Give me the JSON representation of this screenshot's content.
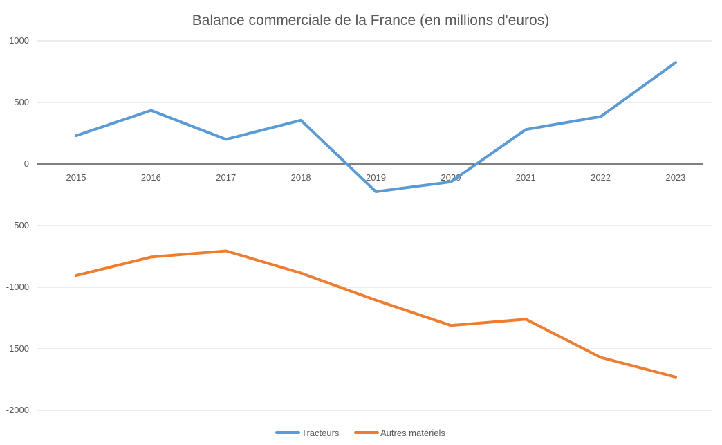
{
  "chart_data": {
    "type": "line",
    "title": "Balance commerciale de la France (en millions d'euros)",
    "xlabel": "",
    "ylabel": "",
    "categories": [
      "2015",
      "2016",
      "2017",
      "2018",
      "2019",
      "2020",
      "2021",
      "2022",
      "2023"
    ],
    "ylim": [
      -2000,
      1000
    ],
    "yticks": [
      1000,
      500,
      0,
      -500,
      -1000,
      -1500,
      -2000
    ],
    "grid": true,
    "legend_position": "bottom",
    "series": [
      {
        "name": "Tracteurs",
        "color": "#5b9bd5",
        "values": [
          230,
          435,
          200,
          355,
          -225,
          -145,
          280,
          385,
          825
        ]
      },
      {
        "name": "Autres matériels",
        "color": "#ed7d31",
        "values": [
          -905,
          -755,
          -705,
          -885,
          -1105,
          -1310,
          -1260,
          -1570,
          -1730
        ]
      }
    ]
  }
}
